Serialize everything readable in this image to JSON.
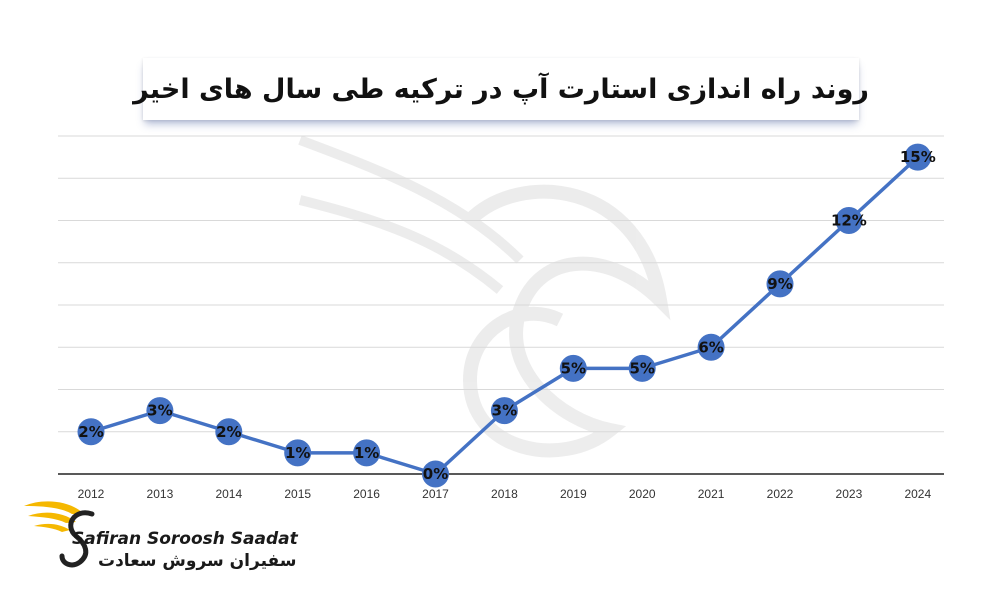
{
  "chart_data": {
    "type": "line",
    "title": "روند راه اندازی استارت آپ در ترکیه طی سال های اخیر",
    "categories": [
      "2012",
      "2013",
      "2014",
      "2015",
      "2016",
      "2017",
      "2018",
      "2019",
      "2020",
      "2021",
      "2022",
      "2023",
      "2024"
    ],
    "values": [
      2,
      3,
      2,
      1,
      1,
      0,
      3,
      5,
      5,
      6,
      9,
      12,
      15
    ],
    "data_labels": [
      "2%",
      "3%",
      "2%",
      "1%",
      "1%",
      "0%",
      "3%",
      "5%",
      "5%",
      "6%",
      "9%",
      "12%",
      "15%"
    ],
    "xlabel": "",
    "ylabel": "",
    "ylim": [
      0,
      16
    ],
    "grid": true,
    "legend": "none",
    "line_color": "#4472c4"
  },
  "branding": {
    "name_en": "Safiran Soroosh Saadat",
    "name_fa": "سفیران سروش سعادت",
    "logo_color": "#f5b800"
  }
}
